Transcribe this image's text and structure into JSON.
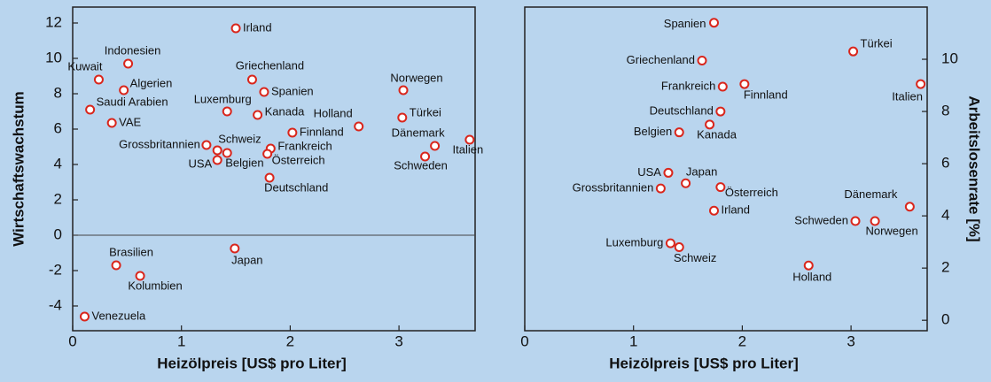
{
  "chart_data": [
    {
      "type": "scatter",
      "xlabel": "Heizölpreis [US$ pro Liter]",
      "ylabel": "Wirtschaftswachstum",
      "y_axis_side": "left",
      "xlim": [
        0,
        3.7
      ],
      "ylim": [
        -5.4,
        12.9
      ],
      "xticks": [
        0,
        1,
        2,
        3
      ],
      "yticks": [
        -4,
        -2,
        0,
        2,
        4,
        6,
        8,
        10,
        12
      ],
      "hline": 0,
      "color": "#d9261c",
      "labels": [
        "Irland",
        "Indonesien",
        "Kuwait",
        "Algerien",
        "Saudi Arabien",
        "VAE",
        "Griechenland",
        "Spanien",
        "Luxemburg",
        "Kanada",
        "Norwegen",
        "Türkei",
        "Holland",
        "Finnland",
        "Grossbritannien",
        "Schweiz",
        "Belgien",
        "USA",
        "Frankreich",
        "Österreich",
        "Deutschland",
        "Dänemark",
        "Schweden",
        "Italien",
        "Japan",
        "Brasilien",
        "Kolumbien",
        "Venezuela"
      ],
      "x": [
        1.5,
        0.51,
        0.24,
        0.47,
        0.16,
        0.36,
        1.65,
        1.76,
        1.42,
        1.7,
        3.04,
        3.03,
        2.63,
        2.02,
        1.23,
        1.33,
        1.42,
        1.33,
        1.82,
        1.79,
        1.81,
        3.33,
        3.24,
        3.65,
        1.49,
        0.4,
        0.62,
        0.11
      ],
      "values": [
        11.7,
        9.7,
        8.8,
        8.2,
        7.1,
        6.35,
        8.8,
        8.1,
        7.0,
        6.8,
        8.2,
        6.65,
        6.15,
        5.8,
        5.1,
        4.8,
        4.65,
        4.25,
        4.9,
        4.6,
        3.25,
        5.05,
        4.45,
        5.4,
        -0.75,
        -1.7,
        -2.3,
        -4.6
      ]
    },
    {
      "type": "scatter",
      "xlabel": "Heizölpreis [US$ pro Liter]",
      "ylabel": "Arbeitslosenrate [%]",
      "y_axis_side": "right",
      "xlim": [
        0,
        3.7
      ],
      "ylim": [
        -0.4,
        12
      ],
      "xticks": [
        0,
        1,
        2,
        3
      ],
      "yticks": [
        0,
        2,
        4,
        6,
        8,
        10
      ],
      "color": "#d9261c",
      "labels": [
        "Spanien",
        "Türkei",
        "Griechenland",
        "Frankreich",
        "Finnland",
        "Italien",
        "Deutschland",
        "Kanada",
        "Belgien",
        "USA",
        "Japan",
        "Grossbritannien",
        "Österreich",
        "Irland",
        "Dänemark",
        "Schweden",
        "Norwegen",
        "Luxemburg",
        "Schweiz",
        "Holland"
      ],
      "x": [
        1.74,
        3.02,
        1.63,
        1.82,
        2.02,
        3.64,
        1.8,
        1.7,
        1.42,
        1.32,
        1.48,
        1.25,
        1.8,
        1.74,
        3.54,
        3.04,
        3.22,
        1.34,
        1.42,
        2.61
      ],
      "values": [
        11.4,
        10.3,
        9.95,
        8.95,
        9.05,
        9.05,
        8.0,
        7.5,
        7.2,
        5.65,
        5.25,
        5.05,
        5.1,
        4.2,
        4.35,
        3.8,
        3.8,
        2.95,
        2.8,
        2.1
      ]
    }
  ]
}
